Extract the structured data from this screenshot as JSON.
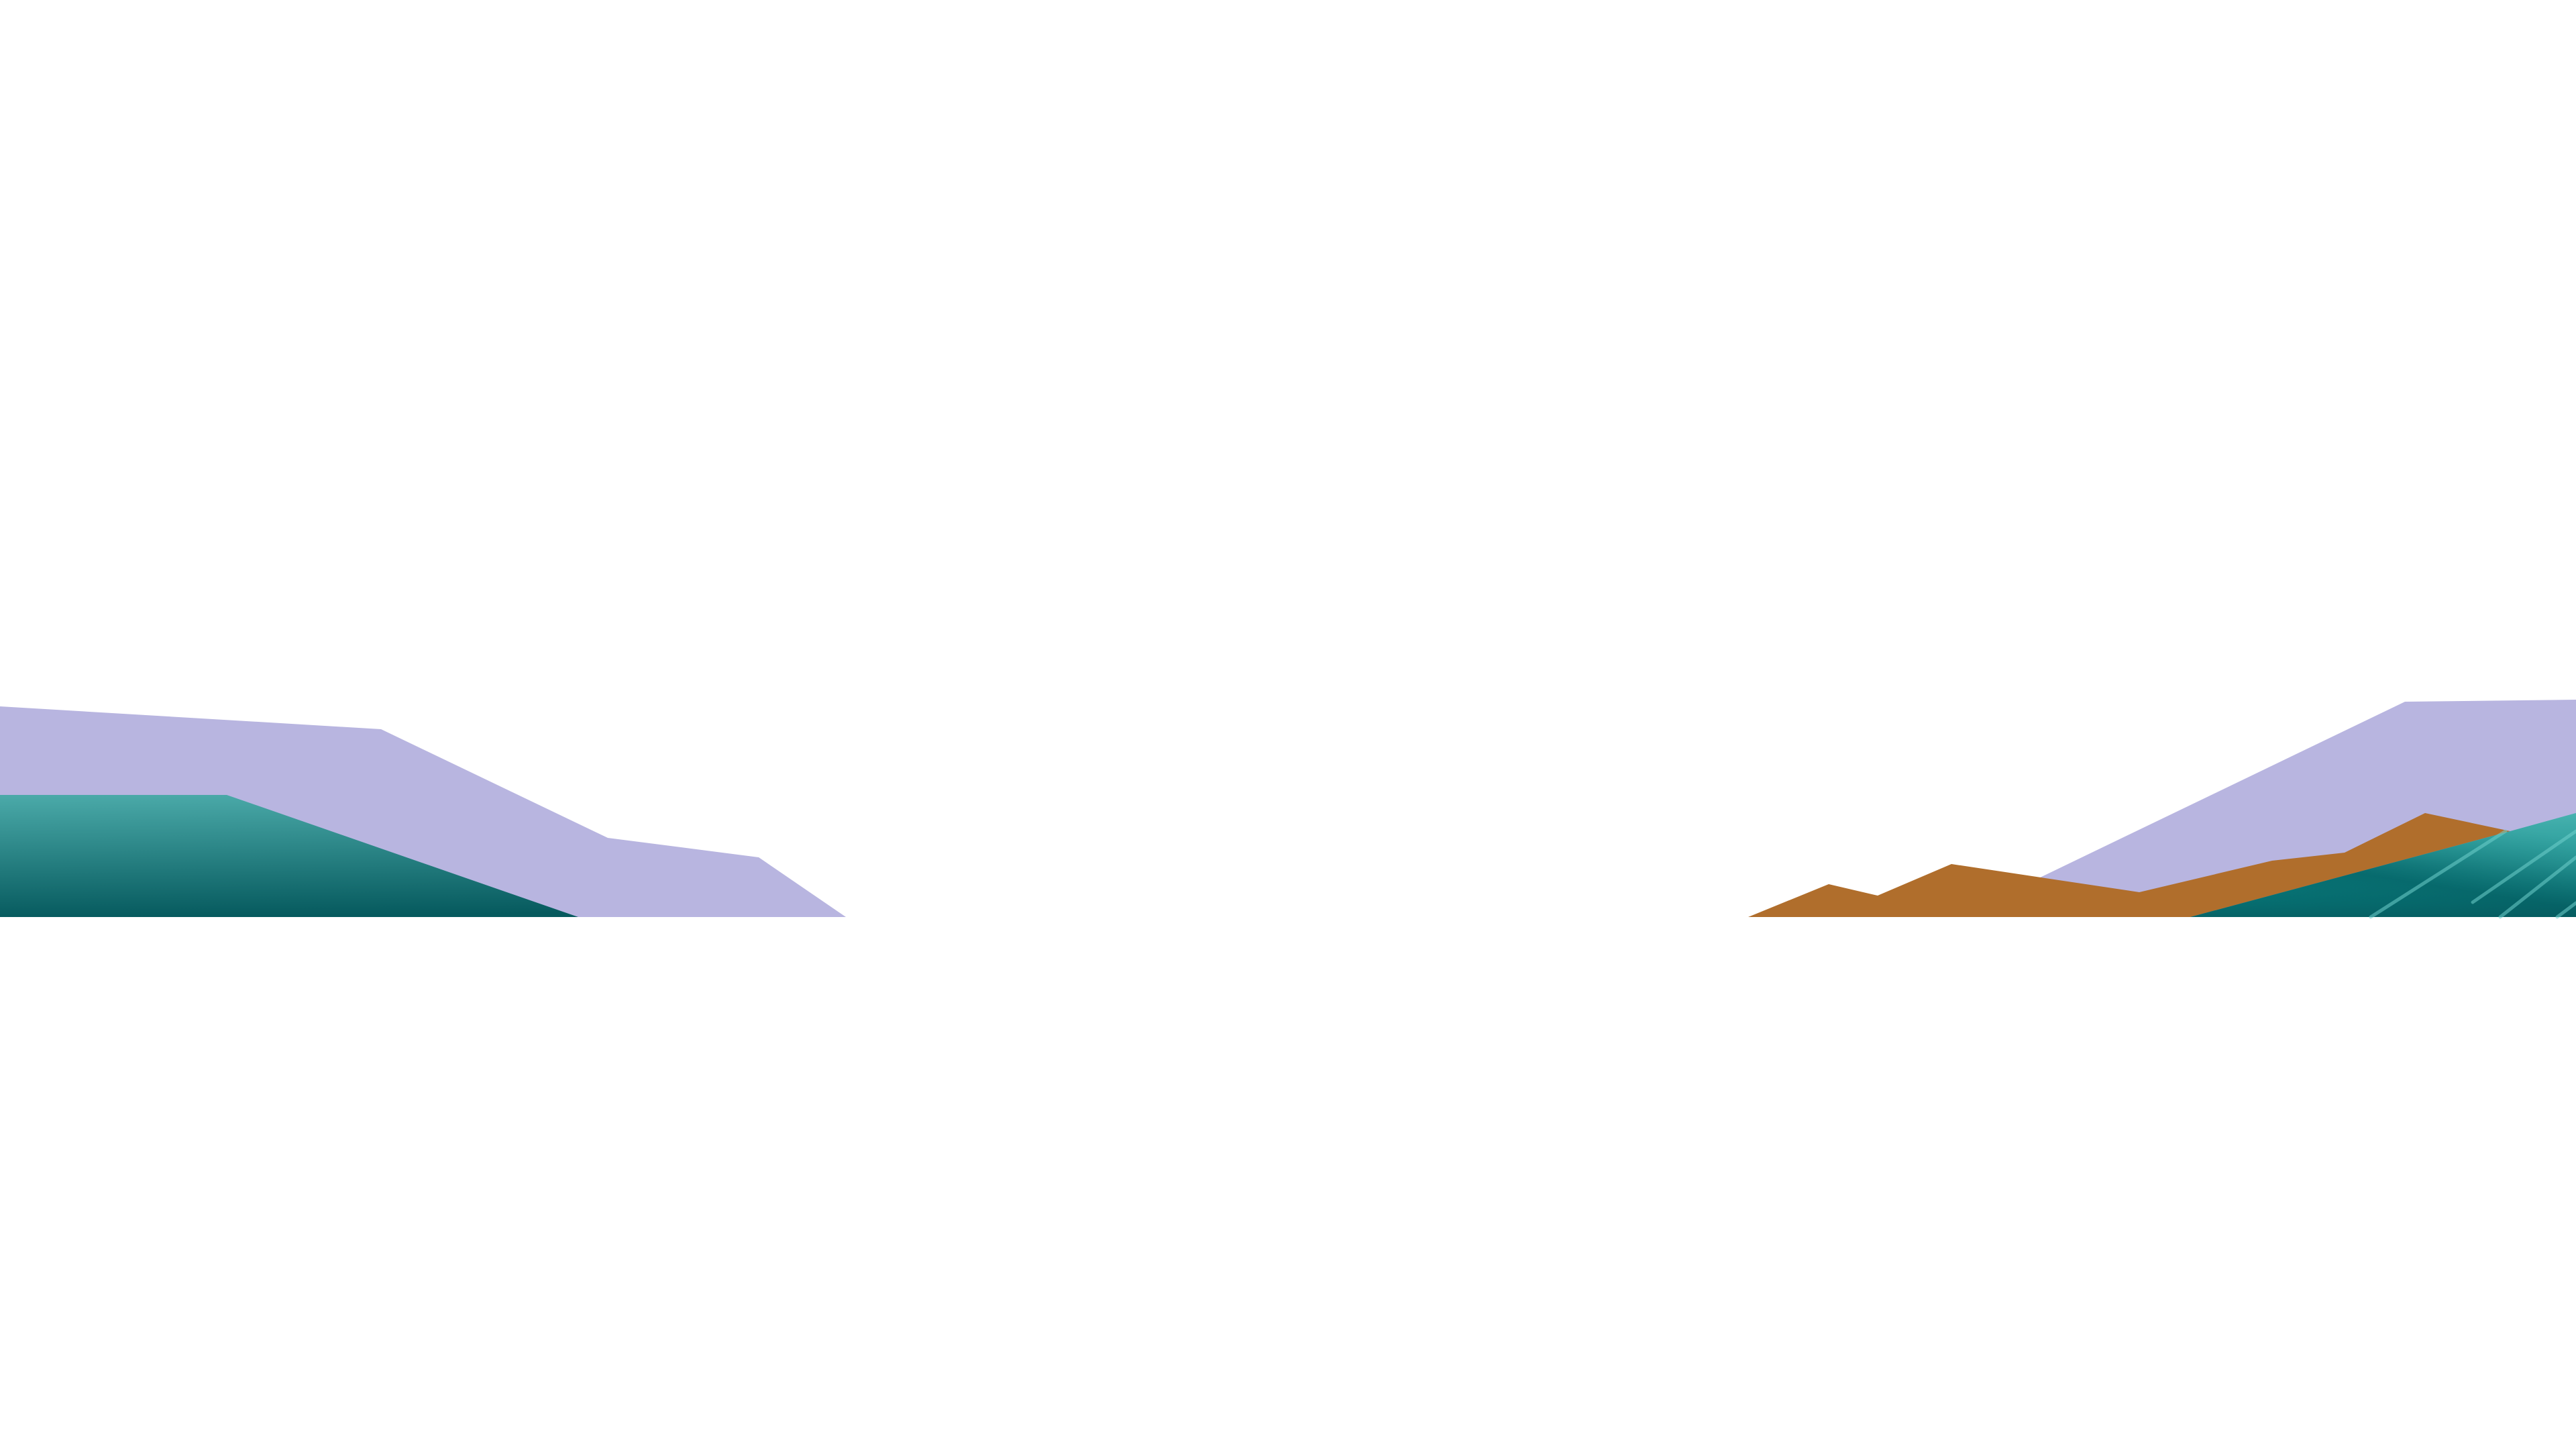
{
  "scene": {
    "background_color": "#ffffff",
    "colors": {
      "lavender": "#b8b5e0",
      "brown": "#b06e2c",
      "teal_light": "#4aa9a8",
      "teal_mid": "#078a8a",
      "teal_dark": "#065a5e",
      "streak": "#6fd0cc"
    }
  }
}
